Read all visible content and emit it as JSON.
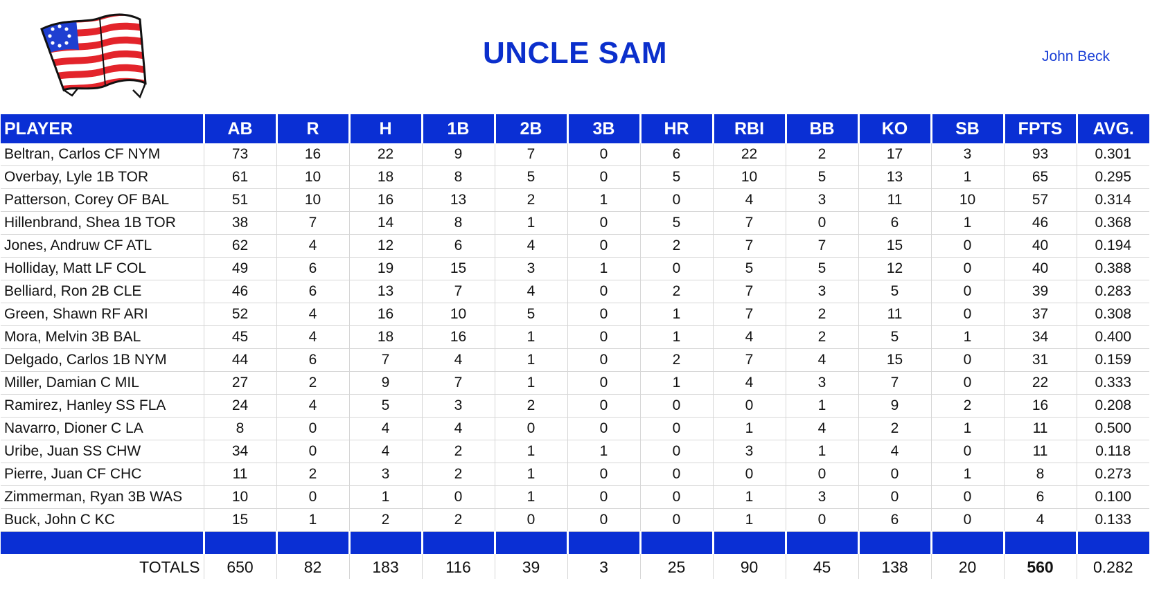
{
  "header": {
    "team_name": "UNCLE SAM",
    "owner": "John Beck"
  },
  "colors": {
    "header_bg": "#0a2fd4",
    "title": "#0b2fcc",
    "flag_red": "#e3242b",
    "flag_blue": "#1f3fd1"
  },
  "columns": [
    "PLAYER",
    "AB",
    "R",
    "H",
    "1B",
    "2B",
    "3B",
    "HR",
    "RBI",
    "BB",
    "KO",
    "SB",
    "FPTS",
    "AVG."
  ],
  "rows": [
    [
      "Beltran, Carlos CF NYM",
      "73",
      "16",
      "22",
      "9",
      "7",
      "0",
      "6",
      "22",
      "2",
      "17",
      "3",
      "93",
      "0.301"
    ],
    [
      "Overbay, Lyle 1B TOR",
      "61",
      "10",
      "18",
      "8",
      "5",
      "0",
      "5",
      "10",
      "5",
      "13",
      "1",
      "65",
      "0.295"
    ],
    [
      "Patterson, Corey OF BAL",
      "51",
      "10",
      "16",
      "13",
      "2",
      "1",
      "0",
      "4",
      "3",
      "11",
      "10",
      "57",
      "0.314"
    ],
    [
      "Hillenbrand, Shea 1B TOR",
      "38",
      "7",
      "14",
      "8",
      "1",
      "0",
      "5",
      "7",
      "0",
      "6",
      "1",
      "46",
      "0.368"
    ],
    [
      "Jones, Andruw CF ATL",
      "62",
      "4",
      "12",
      "6",
      "4",
      "0",
      "2",
      "7",
      "7",
      "15",
      "0",
      "40",
      "0.194"
    ],
    [
      "Holliday, Matt LF COL",
      "49",
      "6",
      "19",
      "15",
      "3",
      "1",
      "0",
      "5",
      "5",
      "12",
      "0",
      "40",
      "0.388"
    ],
    [
      "Belliard, Ron 2B CLE",
      "46",
      "6",
      "13",
      "7",
      "4",
      "0",
      "2",
      "7",
      "3",
      "5",
      "0",
      "39",
      "0.283"
    ],
    [
      "Green, Shawn RF ARI",
      "52",
      "4",
      "16",
      "10",
      "5",
      "0",
      "1",
      "7",
      "2",
      "11",
      "0",
      "37",
      "0.308"
    ],
    [
      "Mora, Melvin 3B BAL",
      "45",
      "4",
      "18",
      "16",
      "1",
      "0",
      "1",
      "4",
      "2",
      "5",
      "1",
      "34",
      "0.400"
    ],
    [
      "Delgado, Carlos 1B NYM",
      "44",
      "6",
      "7",
      "4",
      "1",
      "0",
      "2",
      "7",
      "4",
      "15",
      "0",
      "31",
      "0.159"
    ],
    [
      "Miller, Damian C MIL",
      "27",
      "2",
      "9",
      "7",
      "1",
      "0",
      "1",
      "4",
      "3",
      "7",
      "0",
      "22",
      "0.333"
    ],
    [
      "Ramirez, Hanley SS FLA",
      "24",
      "4",
      "5",
      "3",
      "2",
      "0",
      "0",
      "0",
      "1",
      "9",
      "2",
      "16",
      "0.208"
    ],
    [
      "Navarro, Dioner C LA",
      "8",
      "0",
      "4",
      "4",
      "0",
      "0",
      "0",
      "1",
      "4",
      "2",
      "1",
      "11",
      "0.500"
    ],
    [
      "Uribe, Juan SS CHW",
      "34",
      "0",
      "4",
      "2",
      "1",
      "1",
      "0",
      "3",
      "1",
      "4",
      "0",
      "11",
      "0.118"
    ],
    [
      "Pierre, Juan CF CHC",
      "11",
      "2",
      "3",
      "2",
      "1",
      "0",
      "0",
      "0",
      "0",
      "0",
      "1",
      "8",
      "0.273"
    ],
    [
      "Zimmerman, Ryan 3B WAS",
      "10",
      "0",
      "1",
      "0",
      "1",
      "0",
      "0",
      "1",
      "3",
      "0",
      "0",
      "6",
      "0.100"
    ],
    [
      "Buck, John C KC",
      "15",
      "1",
      "2",
      "2",
      "0",
      "0",
      "0",
      "1",
      "0",
      "6",
      "0",
      "4",
      "0.133"
    ]
  ],
  "totals": [
    "TOTALS",
    "650",
    "82",
    "183",
    "116",
    "39",
    "3",
    "25",
    "90",
    "45",
    "138",
    "20",
    "560",
    "0.282"
  ]
}
